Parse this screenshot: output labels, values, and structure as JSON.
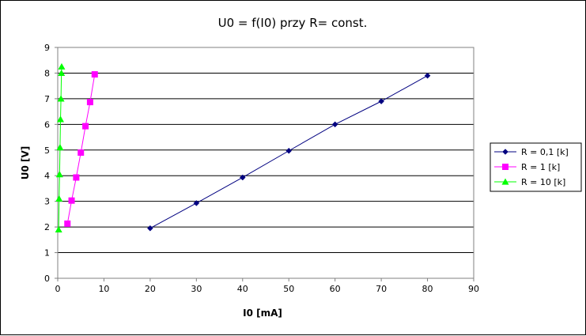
{
  "chart_data": {
    "type": "scatter",
    "title": "U0 = f(I0) przy R= const.",
    "xlabel": "I0 [mA]",
    "ylabel": "U0 [V]",
    "xlim": [
      0,
      90
    ],
    "ylim": [
      0,
      9
    ],
    "xticks": [
      "0",
      "10",
      "20",
      "30",
      "40",
      "50",
      "60",
      "70",
      "80",
      "90"
    ],
    "yticks": [
      "0",
      "1",
      "2",
      "3",
      "4",
      "5",
      "6",
      "7",
      "8",
      "9"
    ],
    "grid": "horizontal",
    "legend_position": "right",
    "series": [
      {
        "name": "R = 0,1 [k]",
        "color": "#000080",
        "marker": "diamond",
        "x": [
          20,
          30,
          40,
          50,
          60,
          70,
          80
        ],
        "y": [
          1.95,
          2.93,
          3.93,
          4.97,
          6.0,
          6.9,
          7.9
        ]
      },
      {
        "name": "R = 1 [k]",
        "color": "#FF00FF",
        "marker": "square",
        "x": [
          2.1,
          3.0,
          4.0,
          5.0,
          6.0,
          7.0,
          8.0
        ],
        "y": [
          2.13,
          3.03,
          3.93,
          4.9,
          5.93,
          6.87,
          7.95
        ]
      },
      {
        "name": "R = 10 [k]",
        "color": "#00FF00",
        "marker": "triangle",
        "x": [
          0.2,
          0.3,
          0.4,
          0.5,
          0.6,
          0.7,
          0.8,
          0.85
        ],
        "y": [
          1.9,
          3.1,
          4.05,
          5.1,
          6.2,
          7.0,
          8.0,
          8.25
        ]
      }
    ]
  }
}
